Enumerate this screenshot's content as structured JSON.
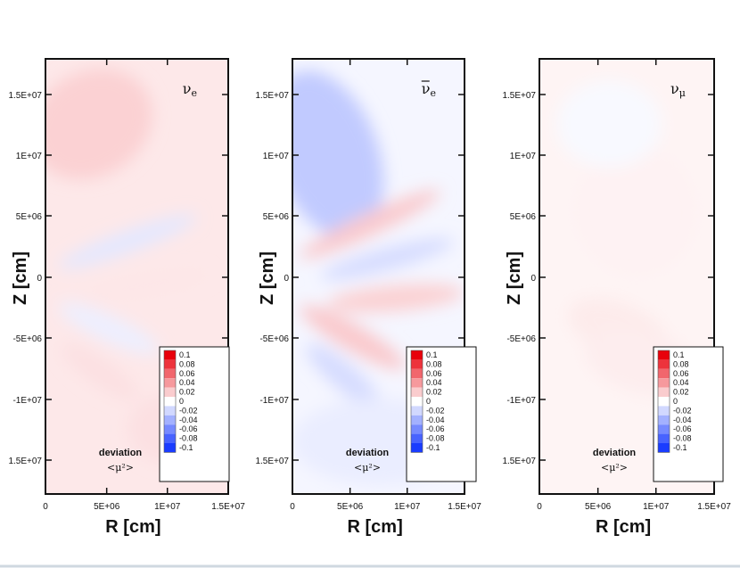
{
  "chart_data": [
    {
      "type": "heatmap",
      "species_symbol": "ν",
      "species_subscript": "e",
      "species_bar": false,
      "xlabel": "R [cm]",
      "ylabel": "Z [cm]",
      "xlim": [
        0,
        15000000
      ],
      "ylim": [
        -18000000,
        18000000
      ],
      "xticks": [
        "0",
        "5E+06",
        "1E+07",
        "1.5E+07"
      ],
      "yticks": [
        "1.5E+07",
        "1E+07",
        "5E+06",
        "0",
        "-5E+06",
        "-1E+07",
        "1.5E+07"
      ],
      "legend": {
        "title": "deviation",
        "subtitle": "<μ²>",
        "levels": [
          "0.1",
          "0.08",
          "0.06",
          "0.04",
          "0.02",
          "0",
          "-0.02",
          "-0.04",
          "-0.06",
          "-0.08",
          "-0.1"
        ],
        "placement": "bottom-right"
      },
      "dominant_sign": "positive",
      "max_abs_deviation": 0.02
    },
    {
      "type": "heatmap",
      "species_symbol": "ν",
      "species_subscript": "e",
      "species_bar": true,
      "xlabel": "R [cm]",
      "ylabel": "Z [cm]",
      "xlim": [
        0,
        15000000
      ],
      "ylim": [
        -18000000,
        18000000
      ],
      "xticks": [
        "0",
        "5E+06",
        "1E+07",
        "1.5E+07"
      ],
      "yticks": [
        "1.5E+07",
        "1E+07",
        "5E+06",
        "0",
        "-5E+06",
        "-1E+07",
        "1.5E+07"
      ],
      "legend": {
        "title": "deviation",
        "subtitle": "<μ²>",
        "levels": [
          "0.1",
          "0.08",
          "0.06",
          "0.04",
          "0.02",
          "0",
          "-0.02",
          "-0.04",
          "-0.06",
          "-0.08",
          "-0.1"
        ],
        "placement": "bottom-right"
      },
      "dominant_sign": "mixed",
      "max_abs_deviation": 0.03
    },
    {
      "type": "heatmap",
      "species_symbol": "ν",
      "species_subscript": "μ",
      "species_bar": false,
      "xlabel": "R [cm]",
      "ylabel": "Z [cm]",
      "xlim": [
        0,
        15000000
      ],
      "ylim": [
        -18000000,
        18000000
      ],
      "xticks": [
        "0",
        "5E+06",
        "1E+07",
        "1.5E+07"
      ],
      "yticks": [
        "1.5E+07",
        "1E+07",
        "5E+06",
        "0",
        "-5E+06",
        "-1E+07",
        "1.5E+07"
      ],
      "legend": {
        "title": "deviation",
        "subtitle": "<μ²>",
        "levels": [
          "0.1",
          "0.08",
          "0.06",
          "0.04",
          "0.02",
          "0",
          "-0.02",
          "-0.04",
          "-0.06",
          "-0.08",
          "-0.1"
        ],
        "placement": "bottom-right"
      },
      "dominant_sign": "positive",
      "max_abs_deviation": 0.01
    }
  ],
  "colors": {
    "positive_max": "#e8000b",
    "neutral": "#ffffff",
    "negative_max": "#1a3cff",
    "frame": "#111111"
  }
}
